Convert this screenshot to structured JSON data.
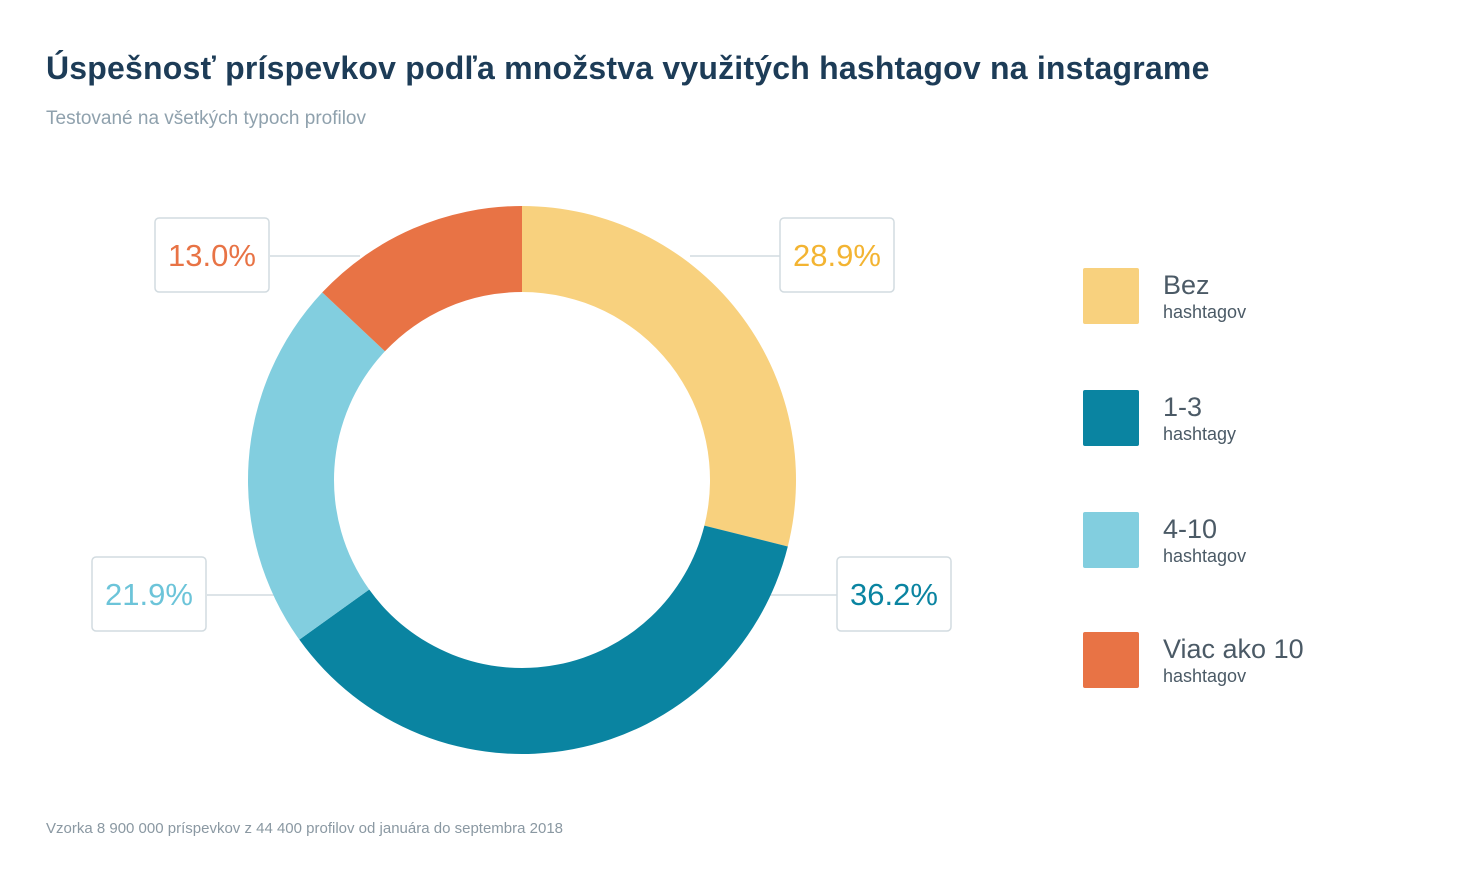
{
  "header": {
    "title": "Úspešnosť príspevkov podľa množstva využitých hashtagov na instagrame",
    "subtitle": "Testované na všetkých typoch profilov"
  },
  "footer": {
    "note": "Vzorka 8 900 000 príspevkov z 44 400 profilov od januára do septembra 2018"
  },
  "chart_data": {
    "type": "pie",
    "style": "donut",
    "categories": [
      "Bez hashtagov",
      "1-3 hashtagy",
      "4-10 hashtagov",
      "Viac ako 10 hashtagov"
    ],
    "values": [
      28.9,
      36.2,
      21.9,
      13.0
    ],
    "value_labels": [
      "28.9%",
      "36.2%",
      "21.9%",
      "13.0%"
    ],
    "colors": [
      "#f8d17e",
      "#0a84a1",
      "#82cedf",
      "#e87345"
    ],
    "label_colors": [
      "#f3b432",
      "#0a84a1",
      "#6cc4d9",
      "#e87345"
    ],
    "legend_position": "right"
  },
  "legend": {
    "items": [
      {
        "name": "Bez",
        "sub": "hashtagov",
        "color": "#f8d17e"
      },
      {
        "name": "1-3",
        "sub": "hashtagy",
        "color": "#0a84a1"
      },
      {
        "name": "4-10",
        "sub": "hashtagov",
        "color": "#82cedf"
      },
      {
        "name": "Viac ako 10",
        "sub": "hashtagov",
        "color": "#e87345"
      }
    ]
  }
}
